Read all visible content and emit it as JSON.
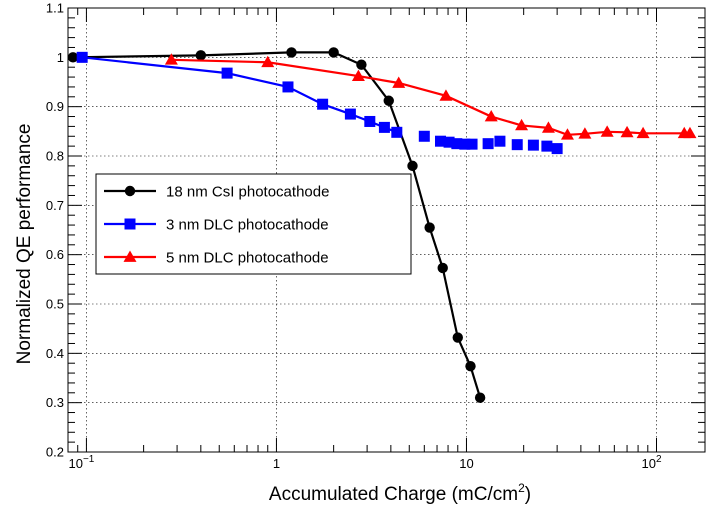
{
  "chart_data": {
    "type": "line",
    "title": "",
    "xlabel_main": "Accumulated Charge (mC/cm",
    "xlabel_sup": "2",
    "xlabel_close": ")",
    "ylabel": "Normalized QE performance",
    "x_scale": "log",
    "xlim": [
      0.08,
      180
    ],
    "ylim": [
      0.2,
      1.1
    ],
    "grid": true,
    "legend_position": "center-left",
    "x_ticks": [
      {
        "base": "10",
        "exp": "−1",
        "value": 0.1
      },
      {
        "base": "1",
        "exp": "",
        "value": 1
      },
      {
        "base": "10",
        "exp": "",
        "value": 10
      },
      {
        "base": "10",
        "exp": "2",
        "value": 100
      }
    ],
    "y_ticks": [
      "0.2",
      "0.3",
      "0.4",
      "0.5",
      "0.6",
      "0.7",
      "0.8",
      "0.9",
      "1",
      "1.1"
    ],
    "series": [
      {
        "name": "18 nm CsI photocathode",
        "color": "#000000",
        "marker": "circle",
        "x": [
          0.085,
          0.4,
          1.2,
          2.0,
          2.8,
          3.9,
          5.2,
          6.4,
          7.5,
          9.0,
          10.5,
          11.8
        ],
        "y": [
          1.0,
          1.004,
          1.01,
          1.01,
          0.985,
          0.912,
          0.78,
          0.655,
          0.573,
          0.432,
          0.374,
          0.31
        ]
      },
      {
        "name": "3 nm DLC photocathode",
        "color": "#0000ff",
        "marker": "square",
        "x": [
          0.095,
          0.55,
          1.15,
          1.75,
          2.45,
          3.1,
          3.7,
          4.3,
          6.0,
          7.3,
          8.1,
          8.9,
          9.8,
          10.7,
          13.0,
          15.0,
          18.5,
          22.5,
          26.5,
          30.0
        ],
        "y": [
          1.0,
          0.968,
          0.94,
          0.905,
          0.885,
          0.87,
          0.858,
          0.848,
          0.84,
          0.83,
          0.828,
          0.825,
          0.824,
          0.824,
          0.825,
          0.83,
          0.823,
          0.822,
          0.82,
          0.815
        ],
        "line_until_index": 7
      },
      {
        "name": "5 nm DLC photocathode",
        "color": "#ff0000",
        "marker": "triangle",
        "x": [
          0.28,
          0.9,
          2.7,
          4.4,
          7.8,
          13.5,
          19.5,
          27.0,
          34.0,
          42.0,
          55.0,
          70.0,
          85.0,
          140.0,
          150.0
        ],
        "y": [
          0.995,
          0.99,
          0.962,
          0.948,
          0.922,
          0.88,
          0.862,
          0.857,
          0.843,
          0.845,
          0.849,
          0.848,
          0.846,
          0.846,
          0.846
        ]
      }
    ]
  }
}
